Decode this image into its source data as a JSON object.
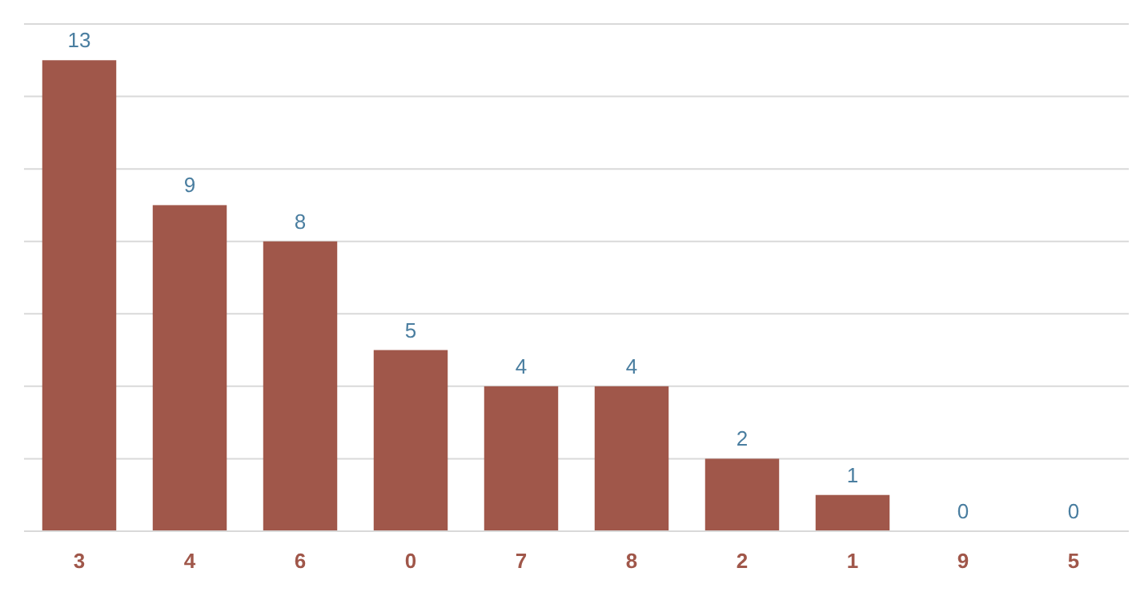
{
  "chart_data": {
    "type": "bar",
    "categories": [
      "3",
      "4",
      "6",
      "0",
      "7",
      "8",
      "2",
      "1",
      "9",
      "5"
    ],
    "values": [
      13,
      9,
      8,
      5,
      4,
      4,
      2,
      1,
      0,
      0
    ],
    "color": "#a0574a",
    "ylim": [
      0,
      14
    ],
    "yticks": [
      {
        "value": 0,
        "label": null
      },
      {
        "value": 2,
        "label": null
      },
      {
        "value": 4,
        "label": null
      },
      {
        "value": 6,
        "label": null
      },
      {
        "value": 8,
        "label": null
      },
      {
        "value": 10,
        "label": null
      },
      {
        "value": 12,
        "label": null
      },
      {
        "value": 14,
        "label": null
      }
    ],
    "grid": "y",
    "tick_labels": "x",
    "data_labels": true
  }
}
